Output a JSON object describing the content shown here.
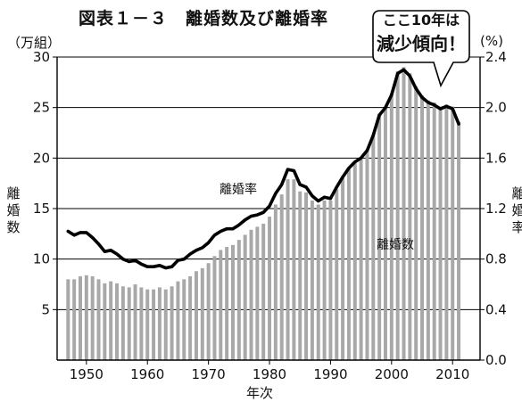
{
  "title": "図表１－３　離婚数及び離婚率",
  "callout": {
    "line1": "ここ10年は",
    "line2": "減少傾向！"
  },
  "unit_left": "（万組）",
  "unit_right": "(%)",
  "ylabel_left": "離婚数",
  "ylabel_right": "離婚率",
  "xlabel": "年次",
  "annotation_rate": "離婚率",
  "annotation_count": "離婚数",
  "colors": {
    "bar": "#a8a8a8",
    "line": "#000000",
    "callout_bg": "#ffffff"
  },
  "chart_data": {
    "type": "bar",
    "title": "図表１－３　離婚数及び離婚率",
    "x": [
      1947,
      1948,
      1949,
      1950,
      1951,
      1952,
      1953,
      1954,
      1955,
      1956,
      1957,
      1958,
      1959,
      1960,
      1961,
      1962,
      1963,
      1964,
      1965,
      1966,
      1967,
      1968,
      1969,
      1970,
      1971,
      1972,
      1973,
      1974,
      1975,
      1976,
      1977,
      1978,
      1979,
      1980,
      1981,
      1982,
      1983,
      1984,
      1985,
      1986,
      1987,
      1988,
      1989,
      1990,
      1991,
      1992,
      1993,
      1994,
      1995,
      1996,
      1997,
      1998,
      1999,
      2000,
      2001,
      2002,
      2003,
      2004,
      2005,
      2006,
      2007,
      2008,
      2009,
      2010,
      2011
    ],
    "xticks": [
      1950,
      1960,
      1970,
      1980,
      1990,
      2000,
      2010
    ],
    "series": [
      {
        "name": "離婚数",
        "axis": "left",
        "type": "bar",
        "values": [
          8.0,
          8.0,
          8.3,
          8.4,
          8.3,
          8.0,
          7.6,
          7.8,
          7.6,
          7.3,
          7.2,
          7.5,
          7.2,
          7.0,
          7.0,
          7.2,
          7.0,
          7.3,
          7.8,
          8.0,
          8.3,
          8.8,
          9.1,
          9.6,
          10.3,
          10.9,
          11.2,
          11.4,
          11.9,
          12.4,
          12.9,
          13.2,
          13.5,
          14.2,
          15.4,
          16.4,
          17.9,
          17.9,
          16.7,
          16.6,
          15.8,
          15.4,
          15.8,
          15.8,
          16.9,
          18.0,
          18.9,
          19.5,
          19.9,
          20.7,
          22.3,
          24.4,
          25.1,
          26.4,
          28.6,
          29.0,
          28.4,
          27.1,
          26.2,
          25.7,
          25.5,
          25.1,
          25.3,
          25.1,
          23.6
        ]
      },
      {
        "name": "離婚率",
        "axis": "right",
        "type": "line",
        "values": [
          1.02,
          0.99,
          1.01,
          1.01,
          0.97,
          0.92,
          0.86,
          0.87,
          0.84,
          0.8,
          0.78,
          0.79,
          0.76,
          0.74,
          0.74,
          0.75,
          0.73,
          0.74,
          0.79,
          0.8,
          0.84,
          0.87,
          0.89,
          0.93,
          0.99,
          1.02,
          1.04,
          1.04,
          1.07,
          1.11,
          1.14,
          1.15,
          1.17,
          1.22,
          1.32,
          1.39,
          1.51,
          1.5,
          1.39,
          1.37,
          1.3,
          1.26,
          1.29,
          1.28,
          1.37,
          1.45,
          1.52,
          1.57,
          1.6,
          1.66,
          1.78,
          1.94,
          2.0,
          2.1,
          2.27,
          2.3,
          2.25,
          2.15,
          2.08,
          2.04,
          2.02,
          1.99,
          2.01,
          1.99,
          1.87
        ]
      }
    ],
    "ylim_left": [
      0,
      30
    ],
    "yticks_left": [
      5,
      10,
      15,
      20,
      25,
      30
    ],
    "ylim_right": [
      0.0,
      2.4
    ],
    "yticks_right": [
      "0.0",
      "0.4",
      "0.8",
      "1.2",
      "1.6",
      "2.0",
      "2.4"
    ],
    "xlabel": "年次",
    "ylabel_left": "離婚数",
    "ylabel_right": "離婚率",
    "grid": "horizontal"
  }
}
